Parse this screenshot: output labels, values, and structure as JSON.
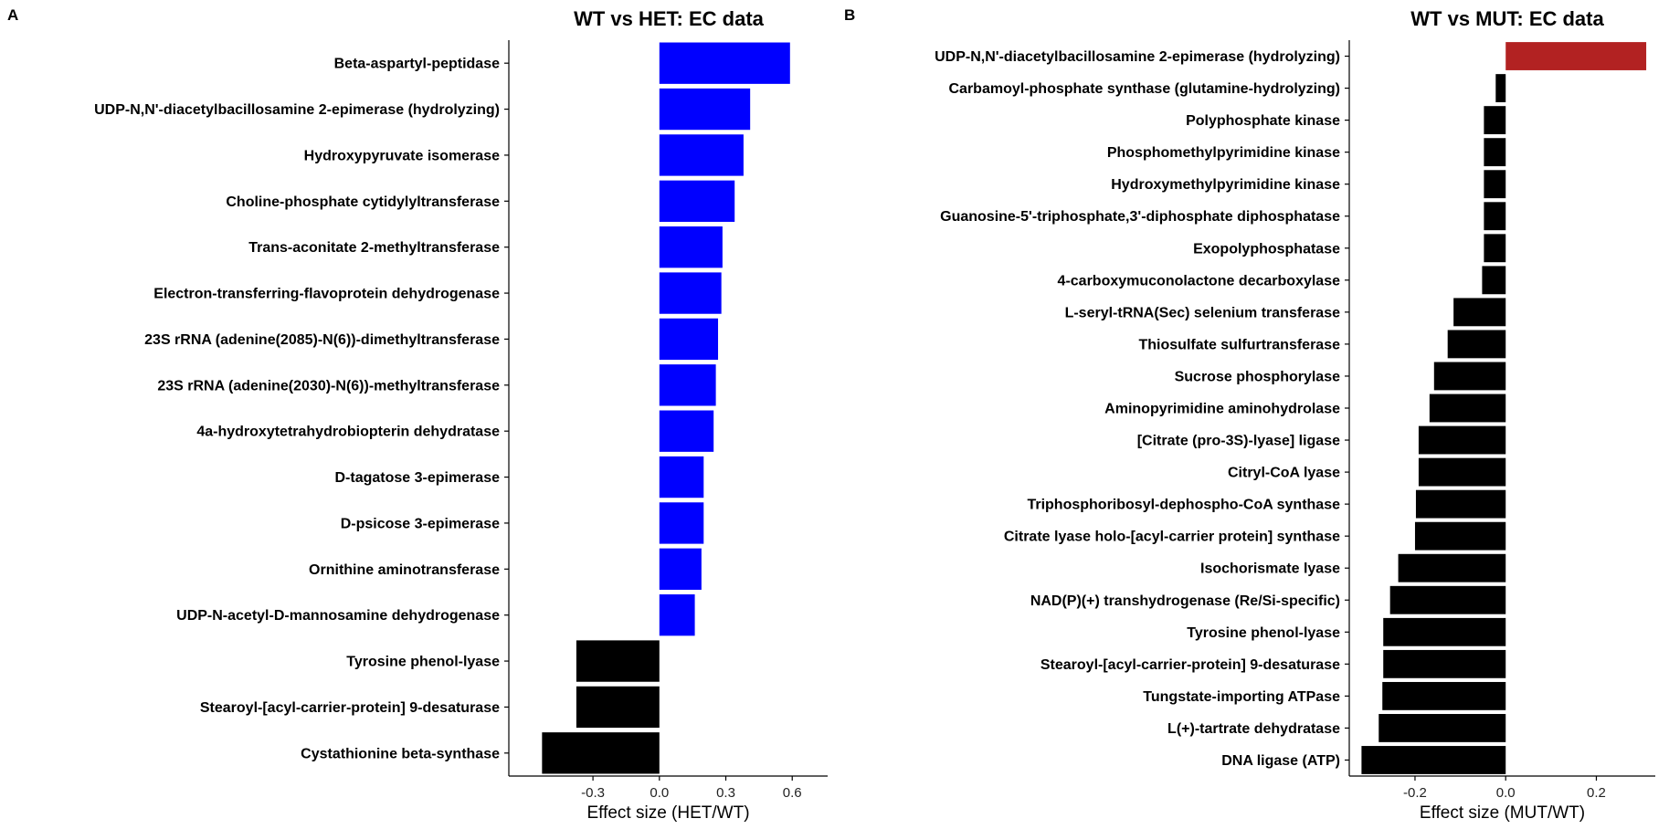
{
  "chart_data": [
    {
      "panel": "A",
      "type": "bar",
      "orientation": "horizontal",
      "title": "WT vs HET: EC data",
      "xlabel": "Effect size (HET/WT)",
      "ylabel": "",
      "xlim": [
        -0.68,
        0.76
      ],
      "xticks": [
        -0.3,
        0.0,
        0.3,
        0.6
      ],
      "xtick_labels": [
        "-0.3",
        "0.0",
        "0.3",
        "0.6"
      ],
      "grid": false,
      "colors": {
        "positive": "#0000ff",
        "negative": "#000000"
      },
      "categories": [
        "Beta-aspartyl-peptidase",
        "UDP-N,N'-diacetylbacillosamine 2-epimerase (hydrolyzing)",
        "Hydroxypyruvate isomerase",
        "Choline-phosphate cytidylyltransferase",
        "Trans-aconitate 2-methyltransferase",
        "Electron-transferring-flavoprotein dehydrogenase",
        "23S rRNA (adenine(2085)-N(6))-dimethyltransferase",
        "23S rRNA (adenine(2030)-N(6))-methyltransferase",
        "4a-hydroxytetrahydrobiopterin dehydratase",
        "D-tagatose 3-epimerase",
        "D-psicose 3-epimerase",
        "Ornithine aminotransferase",
        "UDP-N-acetyl-D-mannosamine dehydrogenase",
        "Tyrosine phenol-lyase",
        "Stearoyl-[acyl-carrier-protein] 9-desaturase",
        "Cystathionine beta-synthase"
      ],
      "values": [
        0.59,
        0.41,
        0.38,
        0.34,
        0.285,
        0.28,
        0.265,
        0.255,
        0.245,
        0.2,
        0.2,
        0.19,
        0.16,
        -0.375,
        -0.375,
        -0.53
      ]
    },
    {
      "panel": "B",
      "type": "bar",
      "orientation": "horizontal",
      "title": "WT vs MUT: EC data",
      "xlabel": "Effect size (MUT/WT)",
      "ylabel": "",
      "xlim": [
        -0.345,
        0.33
      ],
      "xticks": [
        -0.2,
        0.0,
        0.2
      ],
      "xtick_labels": [
        "-0.2",
        "0.0",
        "0.2"
      ],
      "grid": false,
      "colors": {
        "positive": "#b22222",
        "negative": "#000000"
      },
      "categories": [
        "UDP-N,N'-diacetylbacillosamine 2-epimerase (hydrolyzing)",
        "Carbamoyl-phosphate synthase (glutamine-hydrolyzing)",
        "Polyphosphate kinase",
        "Phosphomethylpyrimidine kinase",
        "Hydroxymethylpyrimidine kinase",
        "Guanosine-5'-triphosphate,3'-diphosphate diphosphatase",
        "Exopolyphosphatase",
        "4-carboxymuconolactone decarboxylase",
        "L-seryl-tRNA(Sec) selenium transferase",
        "Thiosulfate sulfurtransferase",
        "Sucrose phosphorylase",
        "Aminopyrimidine aminohydrolase",
        "[Citrate (pro-3S)-lyase] ligase",
        "Citryl-CoA lyase",
        "Triphosphoribosyl-dephospho-CoA synthase",
        "Citrate lyase holo-[acyl-carrier protein] synthase",
        "Isochorismate lyase",
        "NAD(P)(+) transhydrogenase (Re/Si-specific)",
        "Tyrosine phenol-lyase",
        "Stearoyl-[acyl-carrier-protein] 9-desaturase",
        "Tungstate-importing ATPase",
        "L(+)-tartrate dehydratase",
        "DNA ligase (ATP)"
      ],
      "values": [
        0.31,
        -0.022,
        -0.048,
        -0.048,
        -0.048,
        -0.048,
        -0.048,
        -0.052,
        -0.115,
        -0.128,
        -0.158,
        -0.168,
        -0.192,
        -0.192,
        -0.198,
        -0.2,
        -0.237,
        -0.255,
        -0.27,
        -0.27,
        -0.272,
        -0.28,
        -0.318
      ]
    }
  ]
}
